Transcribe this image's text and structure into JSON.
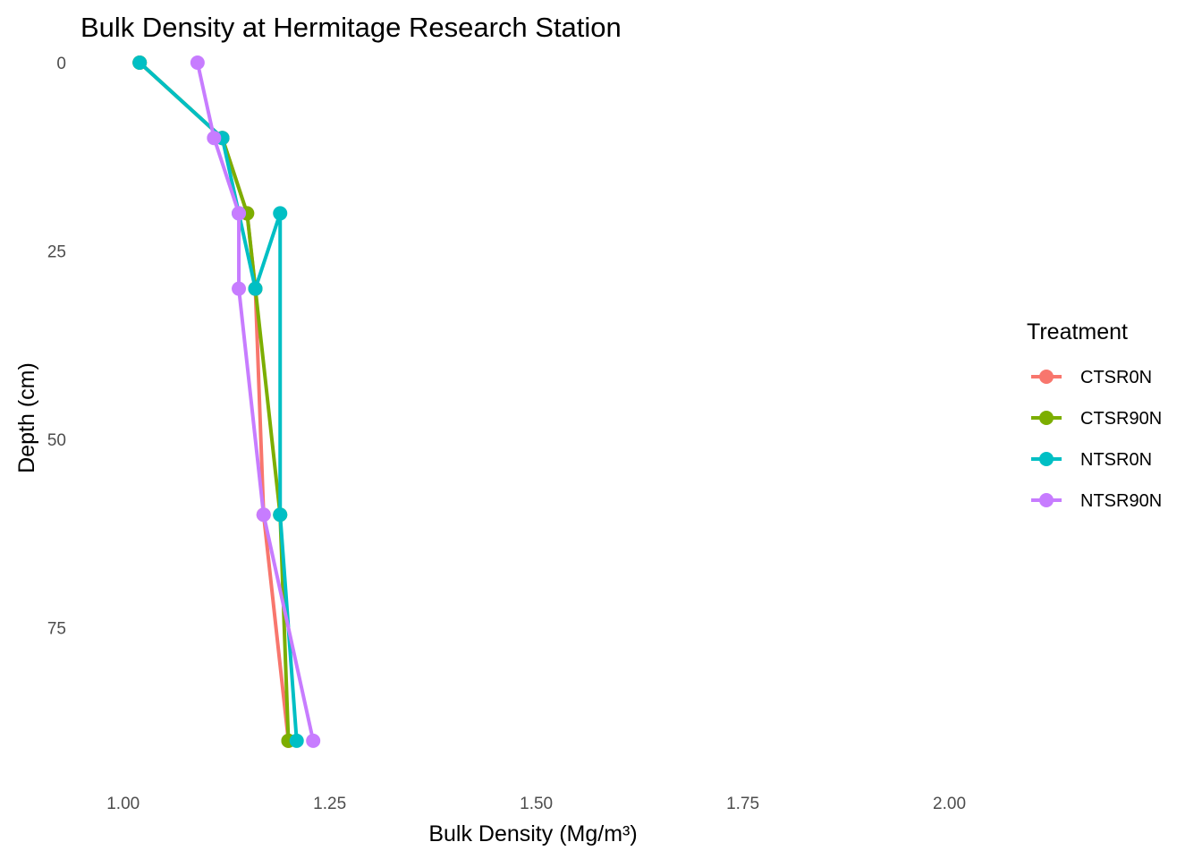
{
  "chart_data": {
    "type": "line",
    "title": "Bulk Density at Hermitage Research Station",
    "xlabel": "Bulk Density (Mg/m³)",
    "ylabel": "Depth (cm)",
    "xlim": [
      0.97,
      2.02
    ],
    "ylim": [
      0,
      95
    ],
    "y_reversed": true,
    "x_ticks": [
      1.0,
      1.25,
      1.5,
      1.75,
      2.0
    ],
    "x_tick_labels": [
      "1.00",
      "1.25",
      "1.50",
      "1.75",
      "2.00"
    ],
    "y_ticks": [
      0,
      25,
      50,
      75
    ],
    "y_tick_labels": [
      "0",
      "25",
      "50",
      "75"
    ],
    "grid": false,
    "legend": {
      "title": "Treatment",
      "position": "right"
    },
    "series": [
      {
        "name": "CTSR0N",
        "color": "#F8766D",
        "points": [
          {
            "x": 1.02,
            "y": 0
          },
          {
            "x": 1.12,
            "y": 10
          },
          {
            "x": 1.15,
            "y": 20
          },
          {
            "x": 1.16,
            "y": 30
          },
          {
            "x": 1.17,
            "y": 60
          },
          {
            "x": 1.2,
            "y": 90
          }
        ]
      },
      {
        "name": "CTSR90N",
        "color": "#7CAE00",
        "points": [
          {
            "x": 1.02,
            "y": 0
          },
          {
            "x": 1.12,
            "y": 10
          },
          {
            "x": 1.15,
            "y": 20
          },
          {
            "x": 1.16,
            "y": 30
          },
          {
            "x": 1.19,
            "y": 60
          },
          {
            "x": 1.2,
            "y": 90
          }
        ]
      },
      {
        "name": "NTSR0N",
        "color": "#00BFC4",
        "points": [
          {
            "x": 1.02,
            "y": 0
          },
          {
            "x": 1.12,
            "y": 10
          },
          {
            "x": 1.14,
            "y": 20
          },
          {
            "x": 1.16,
            "y": 30
          },
          {
            "x": 1.19,
            "y": 20
          },
          {
            "x": 1.19,
            "y": 60
          },
          {
            "x": 1.21,
            "y": 90
          }
        ]
      },
      {
        "name": "NTSR90N",
        "color": "#C77CFF",
        "points": [
          {
            "x": 1.09,
            "y": 0
          },
          {
            "x": 1.11,
            "y": 10
          },
          {
            "x": 1.14,
            "y": 20
          },
          {
            "x": 1.14,
            "y": 30
          },
          {
            "x": 1.17,
            "y": 60
          },
          {
            "x": 1.23,
            "y": 90
          }
        ]
      }
    ]
  }
}
